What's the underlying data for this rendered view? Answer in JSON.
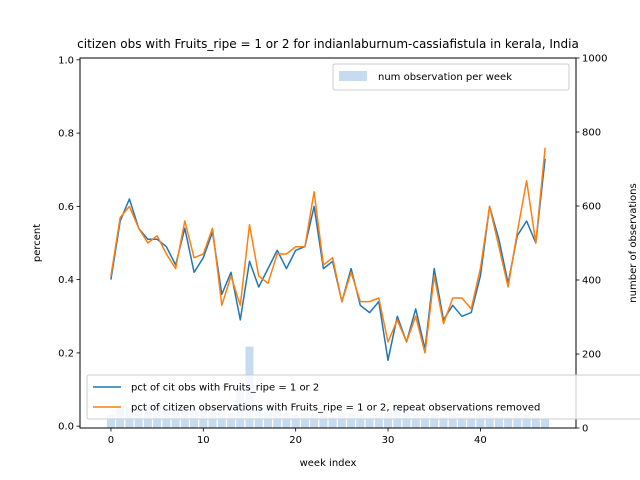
{
  "chart_data": {
    "type": "line",
    "title": "citizen obs with Fruits_ripe = 1 or 2 for indianlaburnum-cassiafistula in kerala, India",
    "xlabel": "week index",
    "ylabel": "percent",
    "y2label": "number of observations",
    "xlim": [
      -3.35,
      50.35
    ],
    "ylim": [
      -0.005,
      1.005
    ],
    "y2lim": [
      0,
      1000
    ],
    "xticks": [
      0,
      10,
      20,
      30,
      40
    ],
    "yticks": [
      0.0,
      0.2,
      0.4,
      0.6,
      0.8,
      1.0
    ],
    "ytick_labels": [
      "0.0",
      "0.2",
      "0.4",
      "0.6",
      "0.8",
      "1.0"
    ],
    "y2ticks": [
      0,
      200,
      400,
      600,
      800,
      1000
    ],
    "x": [
      0,
      1,
      2,
      3,
      4,
      5,
      6,
      7,
      8,
      9,
      10,
      11,
      12,
      13,
      14,
      15,
      16,
      17,
      18,
      19,
      20,
      21,
      22,
      23,
      24,
      25,
      26,
      27,
      28,
      29,
      30,
      31,
      32,
      33,
      34,
      35,
      36,
      37,
      38,
      39,
      40,
      41,
      42,
      43,
      44,
      45,
      46,
      47
    ],
    "series": [
      {
        "name": "pct of cit obs with Fruits_ripe = 1 or 2",
        "color": "#1f77b4",
        "values": [
          0.4,
          0.56,
          0.62,
          0.54,
          0.51,
          0.51,
          0.49,
          0.44,
          0.54,
          0.42,
          0.46,
          0.53,
          0.36,
          0.42,
          0.29,
          0.45,
          0.38,
          0.43,
          0.48,
          0.43,
          0.48,
          0.49,
          0.6,
          0.43,
          0.45,
          0.34,
          0.43,
          0.33,
          0.31,
          0.34,
          0.18,
          0.3,
          0.23,
          0.32,
          0.21,
          0.43,
          0.29,
          0.33,
          0.3,
          0.31,
          0.41,
          0.6,
          0.51,
          0.39,
          0.52,
          0.56,
          0.5,
          0.73
        ]
      },
      {
        "name": "pct of citizen observations with Fruits_ripe = 1 or 2, repeat observations removed",
        "color": "#ff7f0e",
        "values": [
          0.41,
          0.57,
          0.6,
          0.54,
          0.5,
          0.52,
          0.47,
          0.43,
          0.56,
          0.46,
          0.47,
          0.54,
          0.33,
          0.41,
          0.33,
          0.55,
          0.41,
          0.39,
          0.47,
          0.47,
          0.49,
          0.49,
          0.64,
          0.44,
          0.46,
          0.34,
          0.42,
          0.34,
          0.34,
          0.35,
          0.23,
          0.29,
          0.23,
          0.3,
          0.2,
          0.41,
          0.28,
          0.35,
          0.35,
          0.32,
          0.43,
          0.6,
          0.49,
          0.38,
          0.53,
          0.67,
          0.5,
          0.76
        ]
      }
    ],
    "bar_series": {
      "name": "num observation per week",
      "color": "#c6dbef",
      "axis": "right",
      "values": [
        35,
        55,
        55,
        50,
        65,
        75,
        55,
        50,
        55,
        50,
        55,
        45,
        45,
        40,
        110,
        220,
        50,
        45,
        45,
        40,
        35,
        40,
        35,
        40,
        30,
        40,
        40,
        35,
        30,
        35,
        40,
        65,
        45,
        40,
        35,
        35,
        30,
        40,
        30,
        30,
        35,
        35,
        30,
        30,
        35,
        35,
        30,
        25
      ]
    },
    "legends": [
      {
        "placement": "upper-right",
        "entries": [
          "num observation per week"
        ]
      },
      {
        "placement": "lower-left",
        "entries": [
          "pct of cit obs with Fruits_ripe = 1 or 2",
          "pct of citizen observations with Fruits_ripe = 1 or 2, repeat observations removed"
        ]
      }
    ],
    "grid": false
  }
}
